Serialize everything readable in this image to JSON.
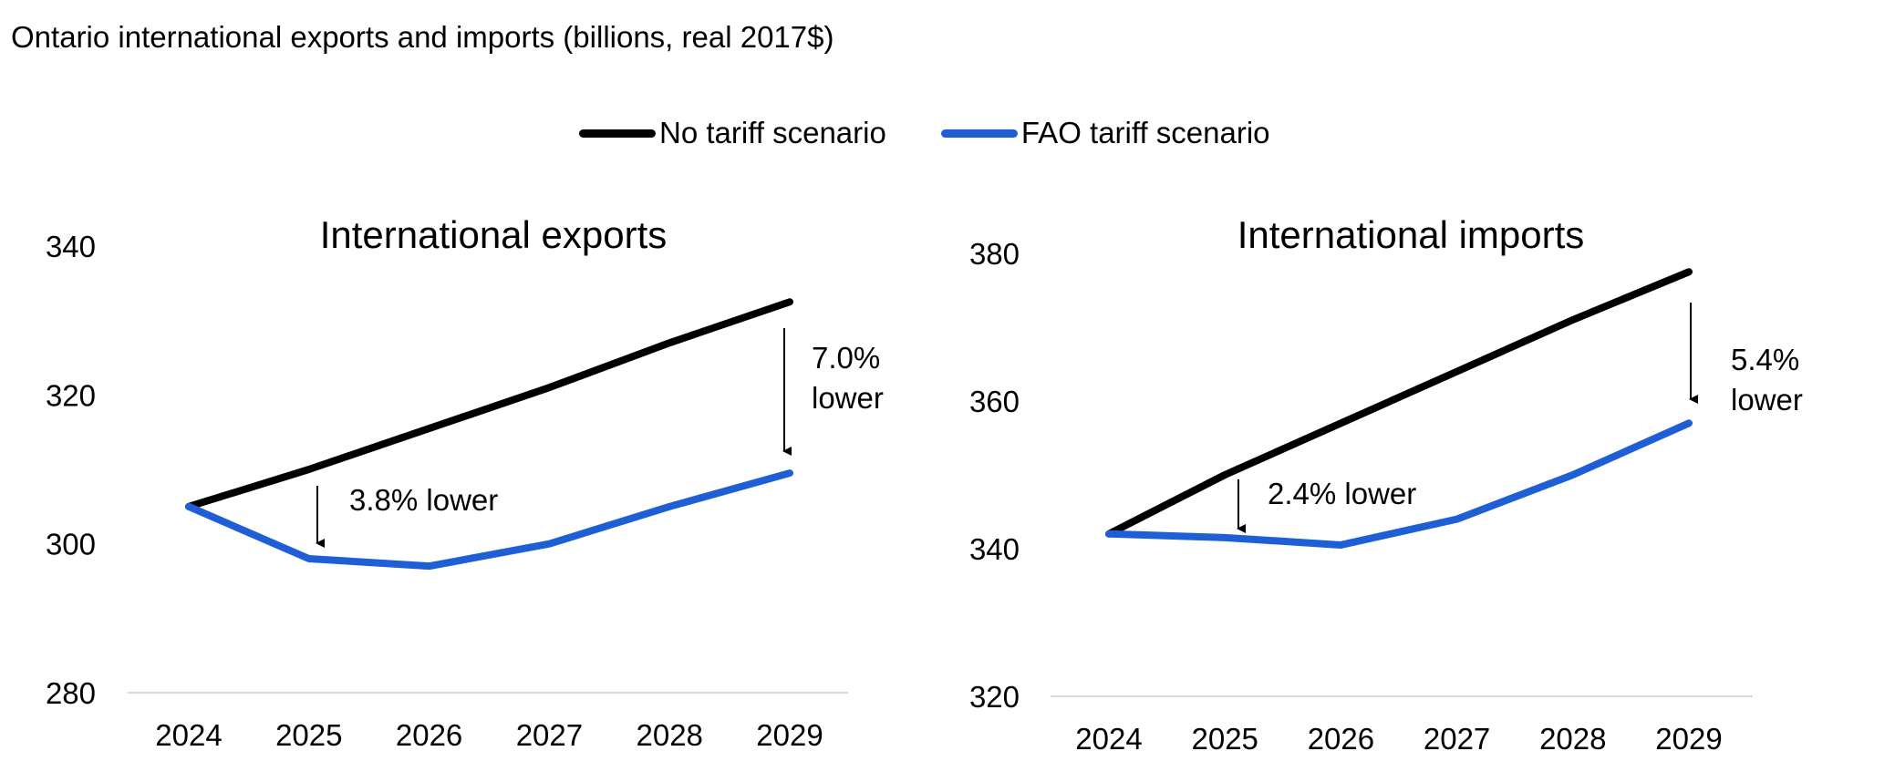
{
  "title": "Ontario international exports and imports (billions, real 2017$)",
  "legend": [
    {
      "label": "No tariff scenario",
      "color": "#000000"
    },
    {
      "label": "FAO tariff scenario",
      "color": "#1f5fd6"
    }
  ],
  "chart_data": [
    {
      "type": "line",
      "title": "International exports",
      "xlabel": "",
      "ylabel": "",
      "categories": [
        "2024",
        "2025",
        "2026",
        "2027",
        "2028",
        "2029"
      ],
      "ylim": [
        280,
        340
      ],
      "yticks": [
        280,
        300,
        320,
        340
      ],
      "grid": false,
      "legend": "top-center",
      "series": [
        {
          "name": "No tariff scenario",
          "color": "#000000",
          "values": [
            305,
            310,
            315.5,
            321,
            327,
            332.5
          ]
        },
        {
          "name": "FAO tariff scenario",
          "color": "#1f5fd6",
          "values": [
            305,
            298,
            297,
            300,
            305,
            309.5
          ]
        }
      ],
      "annotations": [
        {
          "text": "3.8% lower",
          "lines": [
            "3.8% lower"
          ],
          "x": "2025"
        },
        {
          "text": "7.0% lower",
          "lines": [
            "7.0%",
            "lower"
          ],
          "x": "2029"
        }
      ]
    },
    {
      "type": "line",
      "title": "International imports",
      "xlabel": "",
      "ylabel": "",
      "categories": [
        "2024",
        "2025",
        "2026",
        "2027",
        "2028",
        "2029"
      ],
      "ylim": [
        320,
        380
      ],
      "yticks": [
        320,
        340,
        360,
        380
      ],
      "grid": false,
      "legend": "top-center",
      "series": [
        {
          "name": "No tariff scenario",
          "color": "#000000",
          "values": [
            342,
            350,
            357,
            364,
            371,
            377.5
          ]
        },
        {
          "name": "FAO tariff scenario",
          "color": "#1f5fd6",
          "values": [
            342,
            341.5,
            340.5,
            344,
            350,
            357
          ]
        }
      ],
      "annotations": [
        {
          "text": "2.4% lower",
          "lines": [
            "2.4% lower"
          ],
          "x": "2025"
        },
        {
          "text": "5.4% lower",
          "lines": [
            "5.4%",
            "lower"
          ],
          "x": "2029"
        }
      ]
    }
  ]
}
